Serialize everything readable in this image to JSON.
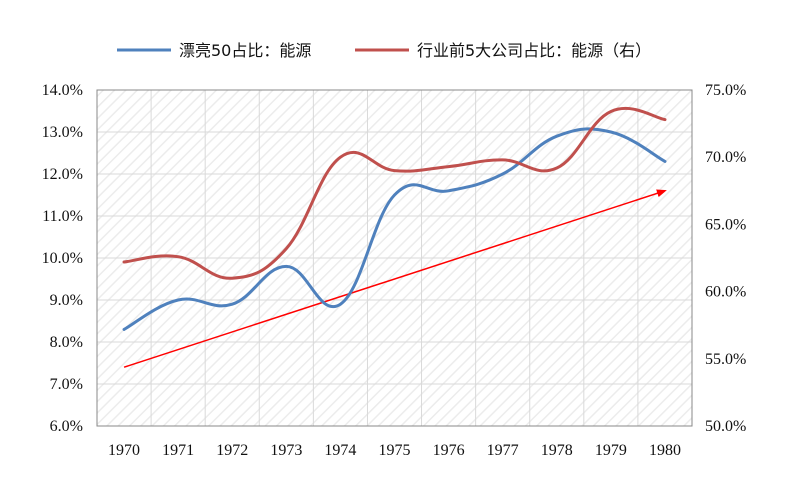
{
  "chart_data": {
    "type": "line",
    "title": "",
    "xlabel": "",
    "ylabel": "",
    "categories": [
      "1970",
      "1971",
      "1972",
      "1973",
      "1974",
      "1975",
      "1976",
      "1977",
      "1978",
      "1979",
      "1980"
    ],
    "y_left": {
      "ylim": [
        6.0,
        14.0
      ],
      "ticks": [
        "6.0%",
        "7.0%",
        "8.0%",
        "9.0%",
        "10.0%",
        "11.0%",
        "12.0%",
        "13.0%",
        "14.0%"
      ],
      "unit": "%"
    },
    "y_right": {
      "ylim": [
        50.0,
        75.0
      ],
      "ticks": [
        "50.0%",
        "55.0%",
        "60.0%",
        "65.0%",
        "70.0%",
        "75.0%"
      ],
      "unit": "%"
    },
    "series": [
      {
        "name": "漂亮50占比：能源",
        "axis": "left",
        "color": "#4F81BD",
        "values": [
          8.3,
          9.0,
          8.9,
          9.8,
          8.9,
          11.5,
          11.6,
          12.0,
          12.9,
          13.0,
          12.3
        ]
      },
      {
        "name": "行业前5大公司占比：能源（右）",
        "axis": "right",
        "color": "#C0504D",
        "values": [
          62.2,
          62.6,
          61.0,
          63.2,
          70.0,
          69.0,
          69.3,
          69.8,
          69.2,
          73.4,
          72.8
        ]
      }
    ],
    "trend_arrow": {
      "color": "#FF0000",
      "axis": "left",
      "from": {
        "x": "1970",
        "y": 7.4
      },
      "to": {
        "x": "1980",
        "y": 11.6
      }
    },
    "grid": true,
    "legend_position": "top"
  }
}
